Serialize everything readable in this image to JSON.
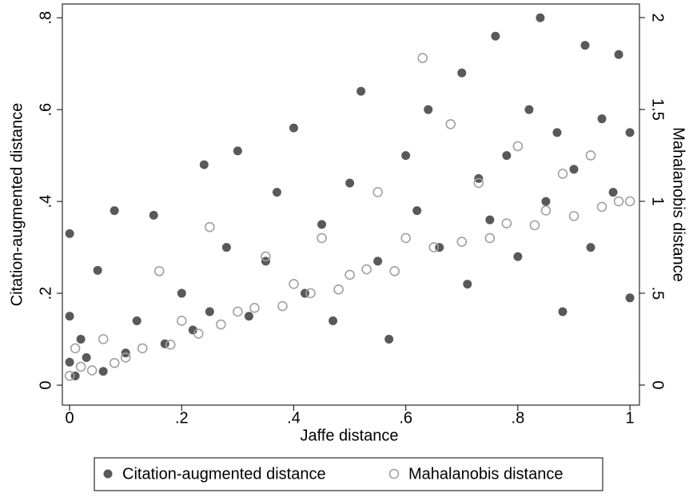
{
  "chart_data": {
    "type": "scatter",
    "xlabel": "Jaffe distance",
    "ylabel": "Citation-augmented distance",
    "y2label": "Mahalanobis distance",
    "xlim": [
      -0.013,
      1.017
    ],
    "ylim": [
      -0.0435,
      0.83
    ],
    "y2lim": [
      -0.109,
      2.074
    ],
    "xticks": [
      0,
      {
        "value": 0.2,
        "label": ".2"
      },
      {
        "value": 0.4,
        "label": ".4"
      },
      {
        "value": 0.6,
        "label": ".6"
      },
      {
        "value": 0.8,
        "label": ".8"
      },
      1
    ],
    "yticks": [
      0,
      {
        "value": 0.2,
        "label": ".2"
      },
      {
        "value": 0.4,
        "label": ".4"
      },
      {
        "value": 0.6,
        "label": ".6"
      },
      {
        "value": 0.8,
        "label": ".8"
      }
    ],
    "y2ticks": [
      0,
      {
        "value": 0.5,
        "label": ".5"
      },
      1,
      1.5,
      2
    ],
    "series": [
      {
        "name": "Citation-augmented distance",
        "color": "#595959",
        "marker": "filled",
        "x": [
          0,
          0,
          0,
          0.01,
          0.02,
          0.03,
          0.05,
          0.06,
          0.08,
          0.1,
          0.12,
          0.15,
          0.17,
          0.2,
          0.22,
          0.24,
          0.25,
          0.28,
          0.3,
          0.32,
          0.35,
          0.37,
          0.4,
          0.42,
          0.45,
          0.47,
          0.5,
          0.52,
          0.55,
          0.57,
          0.6,
          0.62,
          0.64,
          0.66,
          0.7,
          0.71,
          0.73,
          0.75,
          0.76,
          0.78,
          0.8,
          0.82,
          0.84,
          0.85,
          0.87,
          0.88,
          0.9,
          0.92,
          0.93,
          0.95,
          0.97,
          0.98,
          1.0,
          1.0
        ],
        "values": [
          0.33,
          0.05,
          0.15,
          0.02,
          0.1,
          0.06,
          0.25,
          0.03,
          0.38,
          0.07,
          0.14,
          0.37,
          0.09,
          0.2,
          0.12,
          0.48,
          0.16,
          0.3,
          0.51,
          0.15,
          0.27,
          0.42,
          0.56,
          0.2,
          0.35,
          0.14,
          0.44,
          0.64,
          0.27,
          0.1,
          0.5,
          0.38,
          0.6,
          0.3,
          0.68,
          0.22,
          0.45,
          0.36,
          0.76,
          0.5,
          0.28,
          0.6,
          0.8,
          0.4,
          0.55,
          0.16,
          0.47,
          0.74,
          0.3,
          0.58,
          0.42,
          0.72,
          0.19,
          0.55
        ]
      },
      {
        "name": "Mahalanobis distance",
        "color": "#a0a0a0",
        "marker": "hollow",
        "axis": "y2",
        "x": [
          0,
          0.01,
          0.02,
          0.04,
          0.06,
          0.08,
          0.1,
          0.13,
          0.16,
          0.18,
          0.2,
          0.23,
          0.25,
          0.27,
          0.3,
          0.33,
          0.35,
          0.38,
          0.4,
          0.43,
          0.45,
          0.48,
          0.5,
          0.53,
          0.55,
          0.58,
          0.6,
          0.63,
          0.65,
          0.68,
          0.7,
          0.73,
          0.75,
          0.78,
          0.8,
          0.83,
          0.85,
          0.88,
          0.9,
          0.93,
          0.95,
          0.98,
          1.0
        ],
        "values": [
          0.05,
          0.2,
          0.1,
          0.08,
          0.25,
          0.12,
          0.15,
          0.2,
          0.62,
          0.22,
          0.35,
          0.28,
          0.86,
          0.33,
          0.4,
          0.42,
          0.7,
          0.43,
          0.55,
          0.5,
          0.8,
          0.52,
          0.6,
          0.63,
          1.05,
          0.62,
          0.8,
          1.78,
          0.75,
          1.42,
          0.78,
          1.1,
          0.8,
          0.88,
          1.3,
          0.87,
          0.95,
          1.15,
          0.92,
          1.25,
          0.97,
          1.0,
          1.0
        ]
      }
    ]
  }
}
